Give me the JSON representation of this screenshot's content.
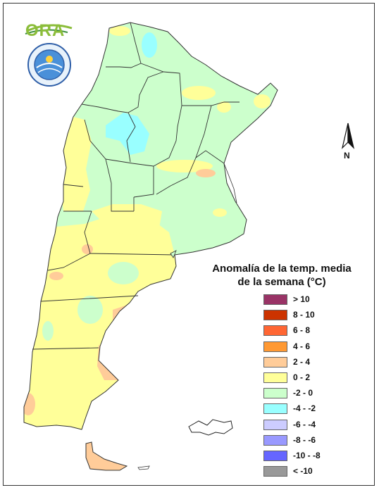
{
  "logo": {
    "brand_text": "ORA",
    "seal_text": "SERVICIO METEOROLÓGICO NACIONAL ARGENTINA"
  },
  "north_arrow": {
    "label": "N"
  },
  "legend": {
    "title_line1": "Anomalía de la temp. media",
    "title_line2": "de la semana (°C)",
    "items": [
      {
        "label": "> 10",
        "color": "#993366"
      },
      {
        "label": "8 - 10",
        "color": "#cc3300"
      },
      {
        "label": "6 - 8",
        "color": "#ff6633"
      },
      {
        "label": "4 - 6",
        "color": "#ff9933"
      },
      {
        "label": "2 - 4",
        "color": "#ffcc99"
      },
      {
        "label": "0 - 2",
        "color": "#ffff99"
      },
      {
        "label": "-2 - 0",
        "color": "#ccffcc"
      },
      {
        "label": "-4 - -2",
        "color": "#99ffff"
      },
      {
        "label": "-6 - -4",
        "color": "#ccccff"
      },
      {
        "label": "-8 - -6",
        "color": "#9999ff"
      },
      {
        "label": "-10 - -8",
        "color": "#6666ff"
      },
      {
        "label": "< -10",
        "color": "#999999"
      }
    ]
  }
}
